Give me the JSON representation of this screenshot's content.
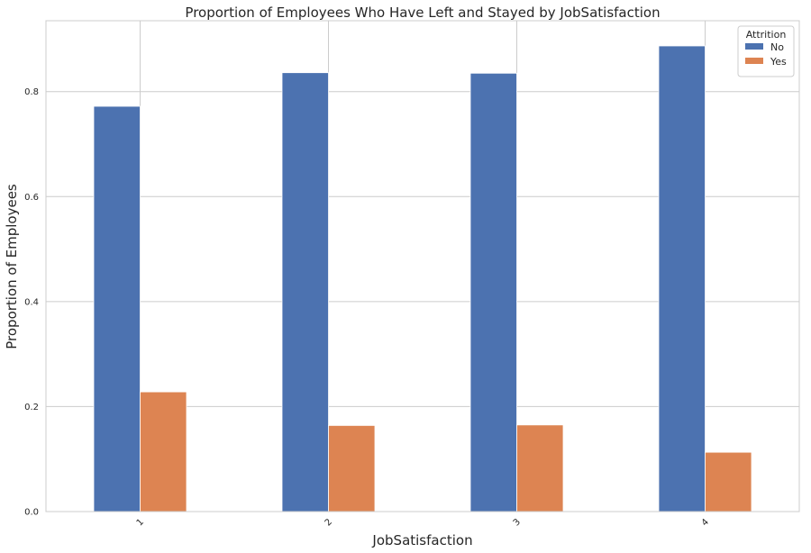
{
  "chart_data": {
    "type": "bar",
    "title": "Proportion of Employees Who Have Left and Stayed by JobSatisfaction",
    "xlabel": "JobSatisfaction",
    "ylabel": "Proportion of Employees",
    "categories": [
      "1",
      "2",
      "3",
      "4"
    ],
    "series": [
      {
        "name": "No",
        "values": [
          0.772,
          0.836,
          0.835,
          0.887
        ],
        "color": "#4c72b0"
      },
      {
        "name": "Yes",
        "values": [
          0.228,
          0.164,
          0.165,
          0.113
        ],
        "color": "#dd8452"
      }
    ],
    "ylim": [
      0,
      0.935
    ],
    "yticks": [
      0.0,
      0.2,
      0.4,
      0.6,
      0.8
    ],
    "ytick_labels": [
      "0.0",
      "0.2",
      "0.4",
      "0.6",
      "0.8"
    ],
    "grid": true,
    "tick_label_rotation": 45,
    "legend": {
      "title": "Attrition",
      "position": "top-right"
    },
    "colors": {
      "grid": "#cccccc",
      "frame": "#cccccc",
      "background": "#ffffff",
      "text": "#262626"
    }
  }
}
